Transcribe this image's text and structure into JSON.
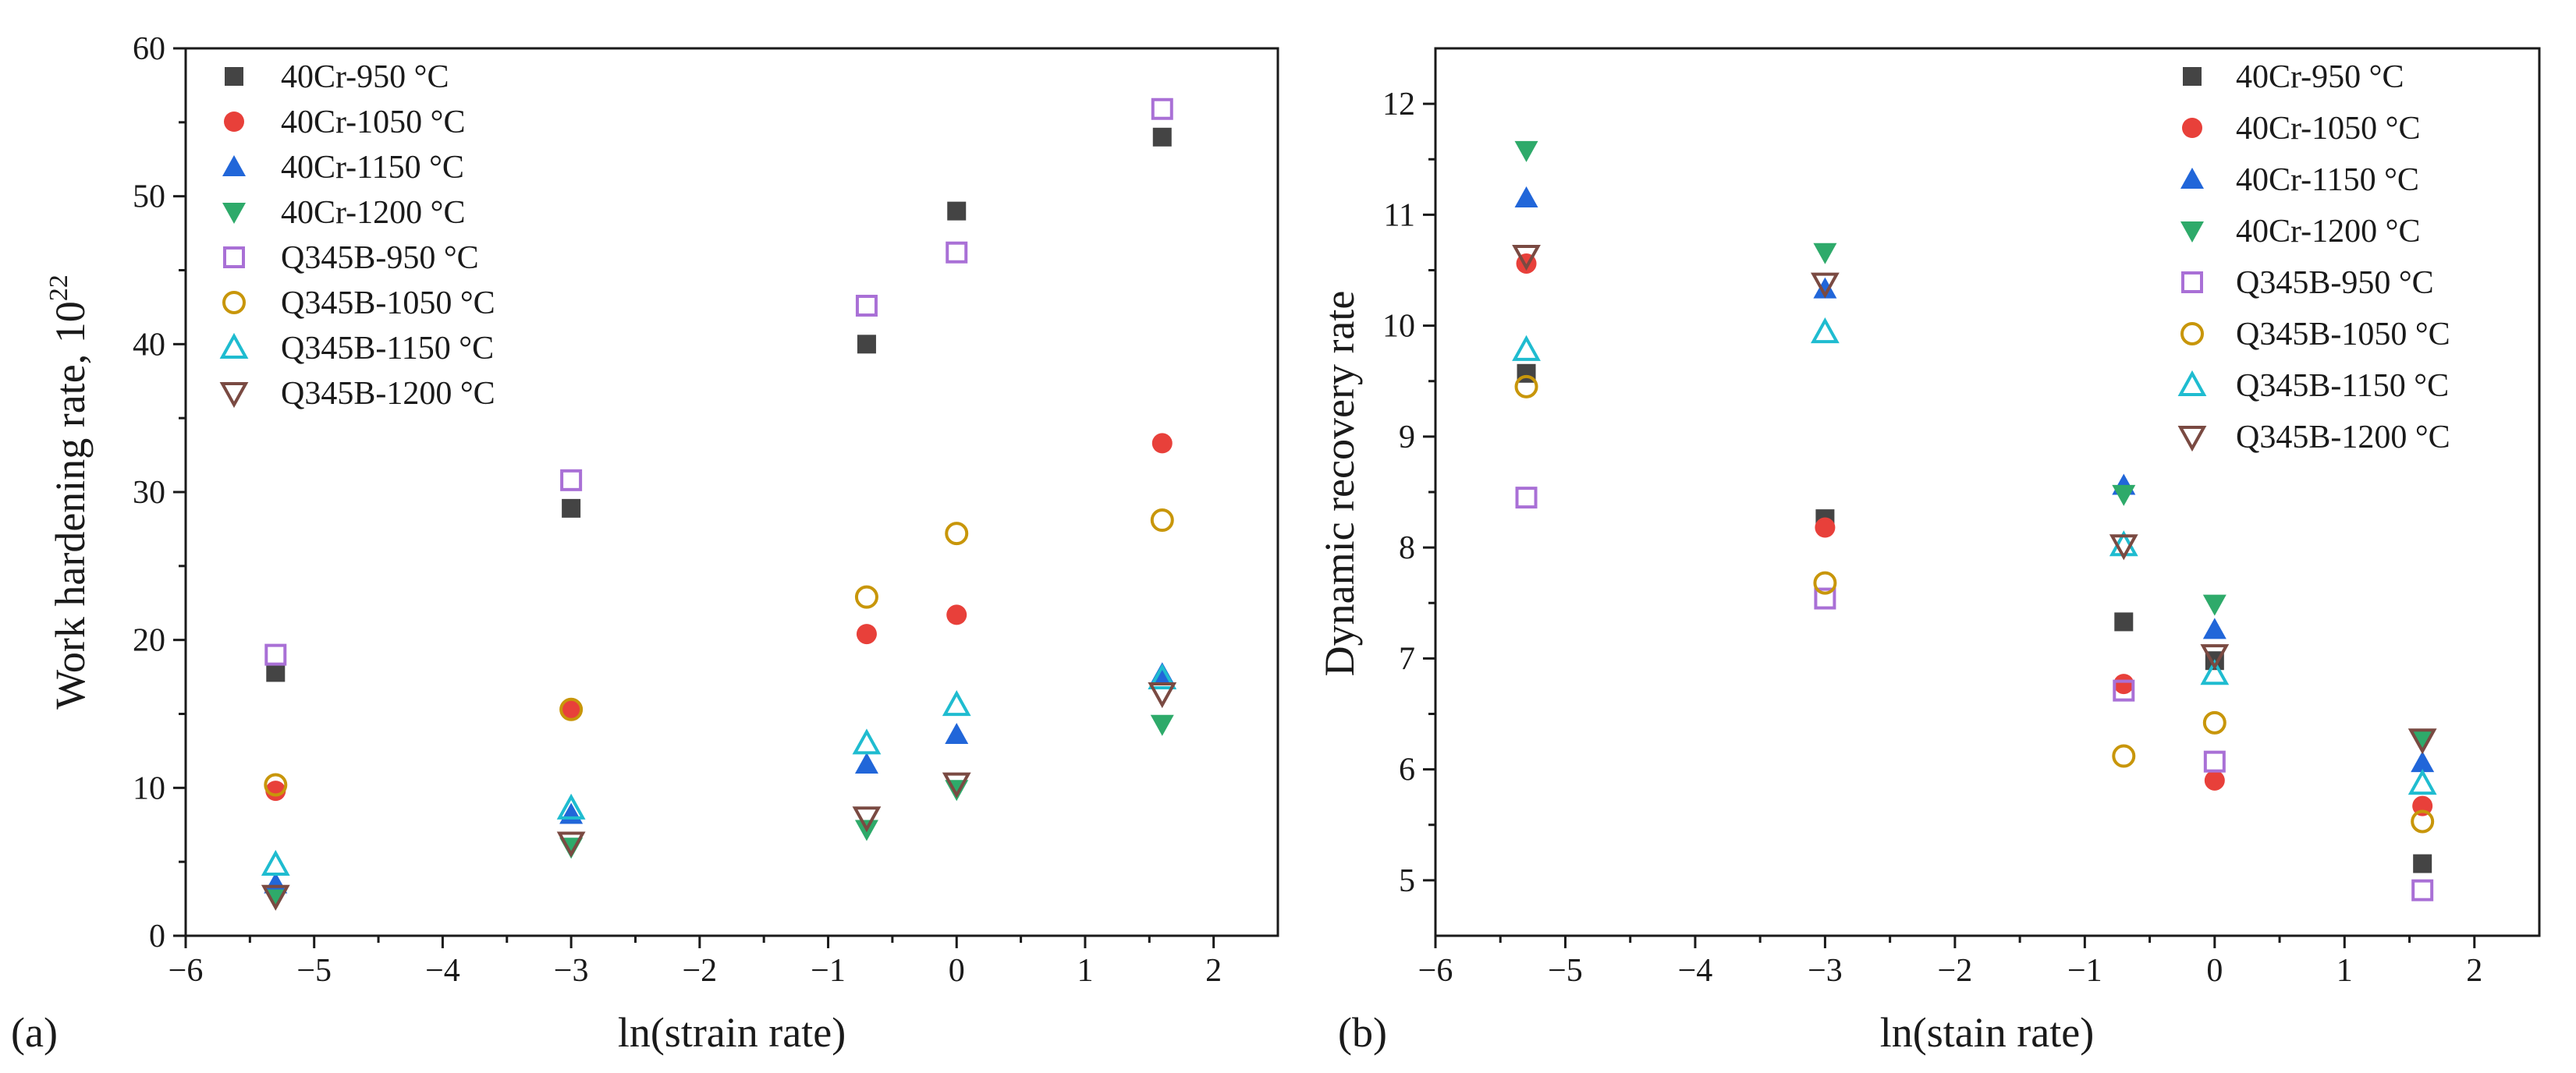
{
  "chart_data": [
    {
      "type": "scatter",
      "panel_label": "(a)",
      "xlabel": "ln(strain rate)",
      "ylabel": "Work hardening rate, 10",
      "ylabel_exponent": "22",
      "xlim": [
        -6,
        2.5
      ],
      "ylim": [
        0,
        60
      ],
      "xticks": [
        "−6",
        "−5",
        "−4",
        "−3",
        "−2",
        "−1",
        "0",
        "1",
        "2"
      ],
      "yticks": [
        "0",
        "10",
        "20",
        "30",
        "40",
        "50",
        "60"
      ],
      "legend_position": "top-left",
      "series": [
        {
          "name": "40Cr-950 °C",
          "marker": "square-filled",
          "color": "#444444",
          "points": [
            [
              -5.3,
              17.8
            ],
            [
              -3.0,
              28.9
            ],
            [
              -0.7,
              40.0
            ],
            [
              0.0,
              49.0
            ],
            [
              1.6,
              54.0
            ]
          ]
        },
        {
          "name": "40Cr-1050 °C",
          "marker": "circle-filled",
          "color": "#e8403a",
          "points": [
            [
              -5.3,
              9.8
            ],
            [
              -3.0,
              15.3
            ],
            [
              -0.7,
              20.4
            ],
            [
              0.0,
              21.7
            ],
            [
              1.6,
              33.3
            ]
          ]
        },
        {
          "name": "40Cr-1150 °C",
          "marker": "triangle-up-filled",
          "color": "#2166d9",
          "points": [
            [
              -5.3,
              3.5
            ],
            [
              -3.0,
              8.2
            ],
            [
              -0.7,
              11.6
            ],
            [
              0.0,
              13.6
            ],
            [
              1.6,
              17.7
            ]
          ]
        },
        {
          "name": "40Cr-1200 °C",
          "marker": "triangle-down-filled",
          "color": "#2eaa6a",
          "points": [
            [
              -5.3,
              2.5
            ],
            [
              -3.0,
              6.0
            ],
            [
              -0.7,
              7.2
            ],
            [
              0.0,
              9.9
            ],
            [
              1.6,
              14.3
            ]
          ]
        },
        {
          "name": "Q345B-950 °C",
          "marker": "square-open",
          "color": "#a970d6",
          "points": [
            [
              -5.3,
              19.0
            ],
            [
              -3.0,
              30.8
            ],
            [
              -0.7,
              42.6
            ],
            [
              0.0,
              46.2
            ],
            [
              1.6,
              55.9
            ]
          ]
        },
        {
          "name": "Q345B-1050 °C",
          "marker": "circle-open",
          "color": "#c8960a",
          "points": [
            [
              -5.3,
              10.2
            ],
            [
              -3.0,
              15.3
            ],
            [
              -0.7,
              22.9
            ],
            [
              0.0,
              27.2
            ],
            [
              1.6,
              28.1
            ]
          ]
        },
        {
          "name": "Q345B-1150 °C",
          "marker": "triangle-up-open",
          "color": "#1fbcd0",
          "points": [
            [
              -5.3,
              4.8
            ],
            [
              -3.0,
              8.6
            ],
            [
              -0.7,
              13.0
            ],
            [
              0.0,
              15.6
            ],
            [
              1.6,
              17.4
            ]
          ]
        },
        {
          "name": "Q345B-1200 °C",
          "marker": "triangle-down-open",
          "color": "#7a4a42",
          "points": [
            [
              -5.3,
              2.7
            ],
            [
              -3.0,
              6.3
            ],
            [
              -0.7,
              8.0
            ],
            [
              0.0,
              10.3
            ],
            [
              1.6,
              16.4
            ]
          ]
        }
      ]
    },
    {
      "type": "scatter",
      "panel_label": "(b)",
      "xlabel": "ln(stain rate)",
      "ylabel": "Dynamic recovery rate",
      "xlim": [
        -6,
        2.5
      ],
      "ylim": [
        4.5,
        12.5
      ],
      "xticks": [
        "−6",
        "−5",
        "−4",
        "−3",
        "−2",
        "−1",
        "0",
        "1",
        "2"
      ],
      "yticks": [
        "5",
        "6",
        "7",
        "8",
        "9",
        "10",
        "11",
        "12"
      ],
      "legend_position": "top-right",
      "series": [
        {
          "name": "40Cr-950 °C",
          "marker": "square-filled",
          "color": "#444444",
          "points": [
            [
              -5.3,
              9.57
            ],
            [
              -3.0,
              8.26
            ],
            [
              -0.7,
              7.33
            ],
            [
              0.0,
              6.98
            ],
            [
              1.6,
              5.15
            ]
          ]
        },
        {
          "name": "40Cr-1050 °C",
          "marker": "circle-filled",
          "color": "#e8403a",
          "points": [
            [
              -5.3,
              10.56
            ],
            [
              -3.0,
              8.18
            ],
            [
              -0.7,
              6.77
            ],
            [
              0.0,
              5.9
            ],
            [
              1.6,
              5.67
            ]
          ]
        },
        {
          "name": "40Cr-1150 °C",
          "marker": "triangle-up-filled",
          "color": "#2166d9",
          "points": [
            [
              -5.3,
              11.15
            ],
            [
              -3.0,
              10.33
            ],
            [
              -0.7,
              8.56
            ],
            [
              0.0,
              7.26
            ],
            [
              1.6,
              6.06
            ]
          ]
        },
        {
          "name": "40Cr-1200 °C",
          "marker": "triangle-down-filled",
          "color": "#2eaa6a",
          "points": [
            [
              -5.3,
              11.58
            ],
            [
              -3.0,
              10.66
            ],
            [
              -0.7,
              8.48
            ],
            [
              0.0,
              7.49
            ],
            [
              1.6,
              6.27
            ]
          ]
        },
        {
          "name": "Q345B-950 °C",
          "marker": "square-open",
          "color": "#a970d6",
          "points": [
            [
              -5.3,
              8.45
            ],
            [
              -3.0,
              7.54
            ],
            [
              -0.7,
              6.71
            ],
            [
              0.0,
              6.07
            ],
            [
              1.6,
              4.91
            ]
          ]
        },
        {
          "name": "Q345B-1050 °C",
          "marker": "circle-open",
          "color": "#c8960a",
          "points": [
            [
              -5.3,
              9.45
            ],
            [
              -3.0,
              7.68
            ],
            [
              -0.7,
              6.12
            ],
            [
              0.0,
              6.42
            ],
            [
              1.6,
              5.53
            ]
          ]
        },
        {
          "name": "Q345B-1150 °C",
          "marker": "triangle-up-open",
          "color": "#1fbcd0",
          "points": [
            [
              -5.3,
              9.78
            ],
            [
              -3.0,
              9.94
            ],
            [
              -0.7,
              8.02
            ],
            [
              0.0,
              6.86
            ],
            [
              1.6,
              5.87
            ]
          ]
        },
        {
          "name": "Q345B-1200 °C",
          "marker": "triangle-down-open",
          "color": "#7a4a42",
          "points": [
            [
              -5.3,
              10.63
            ],
            [
              -3.0,
              10.38
            ],
            [
              -0.7,
              8.02
            ],
            [
              0.0,
              7.03
            ],
            [
              1.6,
              6.27
            ]
          ]
        }
      ]
    }
  ]
}
